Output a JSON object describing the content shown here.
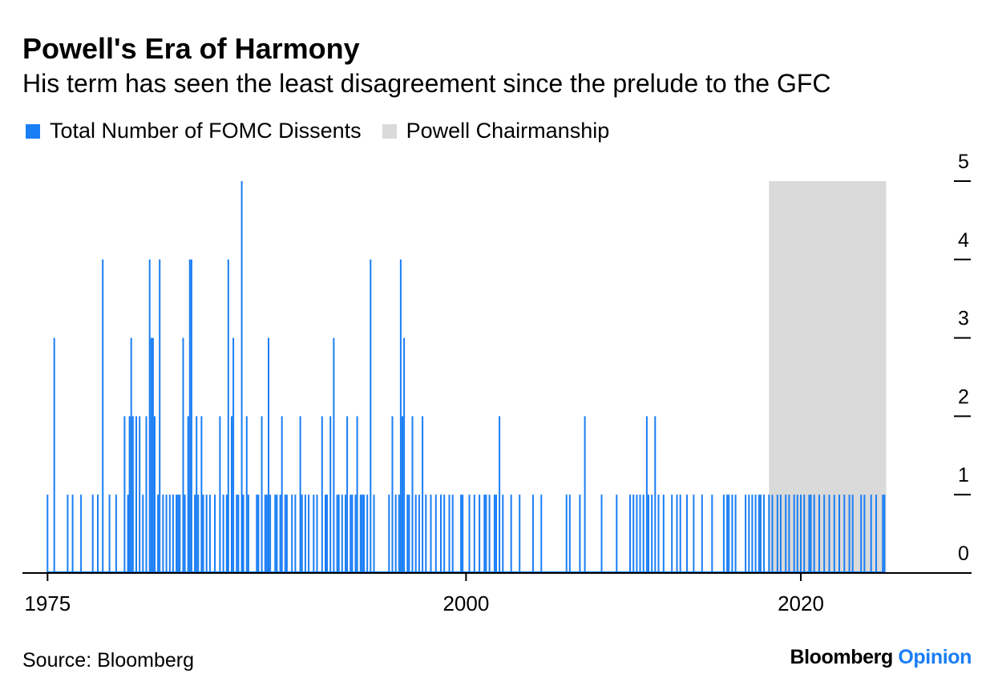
{
  "colors": {
    "bars": "#1a7ef5",
    "shade": "#dadada",
    "axis": "#000000"
  },
  "chart_data": {
    "type": "bar",
    "title": "Powell's Era of Harmony",
    "subtitle": "His term has seen the least disagreement since the prelude to the GFC",
    "legend": {
      "placement": "top-left",
      "items": [
        "Total Number of FOMC Dissents",
        "Powell Chairmanship"
      ]
    },
    "source": "Source: Bloomberg",
    "brand": {
      "part1": "Bloomberg",
      "part2": "Opinion"
    },
    "x_ticks": [
      {
        "value": 1975,
        "label": "1975"
      },
      {
        "value": 2000,
        "label": "2000"
      },
      {
        "value": 2020,
        "label": "2020"
      }
    ],
    "y_ticks": [
      {
        "value": 0,
        "label": "0"
      },
      {
        "value": 1,
        "label": "1"
      },
      {
        "value": 2,
        "label": "2"
      },
      {
        "value": 3,
        "label": "3"
      },
      {
        "value": 4,
        "label": "4"
      },
      {
        "value": 5,
        "label": "5"
      }
    ],
    "xlim": [
      1973.5,
      2030.2
    ],
    "ylim": [
      0,
      5
    ],
    "y_axis_position": "right",
    "grid": false,
    "shaded_period": {
      "label": "Powell Chairmanship",
      "start": 2018.1,
      "end": 2025.1
    },
    "series": [
      {
        "name": "Total Number of FOMC Dissents",
        "points": [
          [
            1975.0,
            1
          ],
          [
            1975.4,
            3
          ],
          [
            1976.2,
            1
          ],
          [
            1976.5,
            1
          ],
          [
            1977.0,
            1
          ],
          [
            1977.7,
            1
          ],
          [
            1978.0,
            1
          ],
          [
            1978.3,
            4
          ],
          [
            1978.7,
            1
          ],
          [
            1979.1,
            1
          ],
          [
            1979.6,
            2
          ],
          [
            1979.8,
            1
          ],
          [
            1979.9,
            2
          ],
          [
            1980.0,
            3
          ],
          [
            1980.1,
            2
          ],
          [
            1980.3,
            2
          ],
          [
            1980.5,
            2
          ],
          [
            1980.7,
            1
          ],
          [
            1980.9,
            2
          ],
          [
            1981.1,
            4
          ],
          [
            1981.2,
            3
          ],
          [
            1981.3,
            3
          ],
          [
            1981.4,
            2
          ],
          [
            1981.6,
            1
          ],
          [
            1981.7,
            4
          ],
          [
            1981.9,
            1
          ],
          [
            1982.1,
            1
          ],
          [
            1982.3,
            1
          ],
          [
            1982.5,
            1
          ],
          [
            1982.7,
            1
          ],
          [
            1982.8,
            1
          ],
          [
            1982.9,
            1
          ],
          [
            1983.1,
            3
          ],
          [
            1983.2,
            1
          ],
          [
            1983.4,
            2
          ],
          [
            1983.5,
            4
          ],
          [
            1983.6,
            4
          ],
          [
            1983.8,
            1
          ],
          [
            1983.9,
            2
          ],
          [
            1984.0,
            1
          ],
          [
            1984.2,
            2
          ],
          [
            1984.3,
            1
          ],
          [
            1984.5,
            1
          ],
          [
            1984.7,
            1
          ],
          [
            1985.0,
            1
          ],
          [
            1985.3,
            2
          ],
          [
            1985.5,
            1
          ],
          [
            1985.7,
            1
          ],
          [
            1985.8,
            4
          ],
          [
            1986.0,
            2
          ],
          [
            1986.1,
            3
          ],
          [
            1986.3,
            1
          ],
          [
            1986.4,
            1
          ],
          [
            1986.6,
            5
          ],
          [
            1986.7,
            1
          ],
          [
            1986.9,
            2
          ],
          [
            1987.0,
            1
          ],
          [
            1987.5,
            1
          ],
          [
            1987.6,
            1
          ],
          [
            1987.8,
            2
          ],
          [
            1988.0,
            1
          ],
          [
            1988.1,
            1
          ],
          [
            1988.2,
            3
          ],
          [
            1988.3,
            1
          ],
          [
            1988.6,
            1
          ],
          [
            1988.7,
            1
          ],
          [
            1988.9,
            1
          ],
          [
            1989.0,
            2
          ],
          [
            1989.2,
            1
          ],
          [
            1989.3,
            1
          ],
          [
            1989.6,
            1
          ],
          [
            1989.8,
            1
          ],
          [
            1990.1,
            2
          ],
          [
            1990.2,
            1
          ],
          [
            1990.4,
            1
          ],
          [
            1990.6,
            1
          ],
          [
            1990.9,
            1
          ],
          [
            1991.1,
            1
          ],
          [
            1991.4,
            2
          ],
          [
            1991.6,
            1
          ],
          [
            1991.7,
            1
          ],
          [
            1991.9,
            2
          ],
          [
            1992.1,
            3
          ],
          [
            1992.3,
            1
          ],
          [
            1992.4,
            1
          ],
          [
            1992.6,
            1
          ],
          [
            1992.8,
            1
          ],
          [
            1992.9,
            2
          ],
          [
            1993.1,
            1
          ],
          [
            1993.2,
            1
          ],
          [
            1993.4,
            1
          ],
          [
            1993.5,
            2
          ],
          [
            1993.7,
            1
          ],
          [
            1993.8,
            1
          ],
          [
            1993.9,
            1
          ],
          [
            1994.1,
            1
          ],
          [
            1994.3,
            4
          ],
          [
            1994.5,
            1
          ],
          [
            1995.4,
            1
          ],
          [
            1995.6,
            2
          ],
          [
            1995.8,
            1
          ],
          [
            1996.0,
            1
          ],
          [
            1996.1,
            4
          ],
          [
            1996.2,
            2
          ],
          [
            1996.3,
            3
          ],
          [
            1996.5,
            1
          ],
          [
            1996.6,
            1
          ],
          [
            1996.8,
            2
          ],
          [
            1997.0,
            1
          ],
          [
            1997.2,
            1
          ],
          [
            1997.4,
            2
          ],
          [
            1997.6,
            1
          ],
          [
            1997.9,
            1
          ],
          [
            1998.2,
            1
          ],
          [
            1998.5,
            1
          ],
          [
            1998.7,
            1
          ],
          [
            1999.0,
            1
          ],
          [
            1999.2,
            1
          ],
          [
            1999.7,
            1
          ],
          [
            1999.8,
            1
          ],
          [
            2000.2,
            1
          ],
          [
            2000.5,
            1
          ],
          [
            2000.8,
            1
          ],
          [
            2001.1,
            1
          ],
          [
            2001.2,
            1
          ],
          [
            2001.4,
            1
          ],
          [
            2001.7,
            1
          ],
          [
            2001.8,
            1
          ],
          [
            2002.0,
            2
          ],
          [
            2002.2,
            1
          ],
          [
            2002.7,
            1
          ],
          [
            2003.2,
            1
          ],
          [
            2004.0,
            1
          ],
          [
            2004.5,
            1
          ],
          [
            2006.0,
            1
          ],
          [
            2006.2,
            1
          ],
          [
            2006.8,
            1
          ],
          [
            2007.1,
            2
          ],
          [
            2008.1,
            1
          ],
          [
            2009.0,
            1
          ],
          [
            2009.8,
            1
          ],
          [
            2010.0,
            1
          ],
          [
            2010.2,
            1
          ],
          [
            2010.4,
            1
          ],
          [
            2010.6,
            1
          ],
          [
            2010.8,
            2
          ],
          [
            2010.9,
            1
          ],
          [
            2011.1,
            1
          ],
          [
            2011.3,
            2
          ],
          [
            2011.5,
            1
          ],
          [
            2011.8,
            1
          ],
          [
            2012.3,
            1
          ],
          [
            2012.6,
            1
          ],
          [
            2012.8,
            1
          ],
          [
            2013.2,
            1
          ],
          [
            2013.6,
            1
          ],
          [
            2014.1,
            1
          ],
          [
            2014.7,
            1
          ],
          [
            2015.4,
            1
          ],
          [
            2015.6,
            1
          ],
          [
            2015.7,
            1
          ],
          [
            2015.9,
            1
          ],
          [
            2016.1,
            1
          ],
          [
            2016.7,
            1
          ],
          [
            2016.9,
            1
          ],
          [
            2017.1,
            1
          ],
          [
            2017.3,
            1
          ],
          [
            2017.5,
            1
          ],
          [
            2017.6,
            1
          ],
          [
            2017.8,
            1
          ],
          [
            2018.1,
            1
          ],
          [
            2018.3,
            1
          ],
          [
            2018.6,
            1
          ],
          [
            2018.8,
            1
          ],
          [
            2019.1,
            1
          ],
          [
            2019.3,
            1
          ],
          [
            2019.6,
            1
          ],
          [
            2019.8,
            1
          ],
          [
            2020.0,
            1
          ],
          [
            2020.2,
            1
          ],
          [
            2020.5,
            1
          ],
          [
            2020.6,
            1
          ],
          [
            2020.8,
            1
          ],
          [
            2021.1,
            1
          ],
          [
            2021.4,
            1
          ],
          [
            2021.7,
            1
          ],
          [
            2022.0,
            1
          ],
          [
            2022.3,
            1
          ],
          [
            2022.6,
            1
          ],
          [
            2022.9,
            1
          ],
          [
            2023.1,
            1
          ],
          [
            2023.6,
            1
          ],
          [
            2023.8,
            1
          ],
          [
            2024.2,
            1
          ],
          [
            2024.5,
            1
          ],
          [
            2024.9,
            1
          ],
          [
            2025.0,
            1
          ]
        ]
      }
    ]
  }
}
